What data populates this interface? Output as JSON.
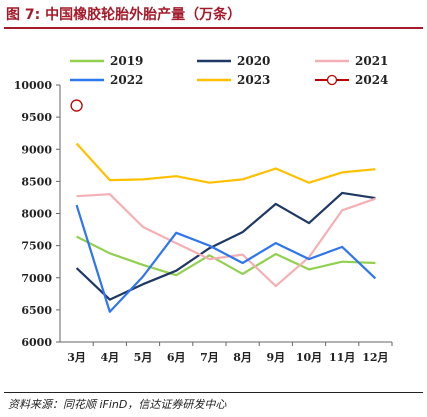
{
  "header": {
    "title": "图 7:  中国橡胶轮胎外胎产量（万条）"
  },
  "footer": {
    "source": "资料来源：同花顺 iFinD，信达证券研发中心"
  },
  "colors": {
    "accent": "#a51b2b",
    "2019": "#92d050",
    "2020": "#1f3864",
    "2021": "#f4b0b4",
    "2022": "#2e75f0",
    "2023": "#ffc000",
    "2024": "#c00000"
  },
  "chart_data": {
    "type": "line",
    "categories": [
      "3月",
      "4月",
      "5月",
      "6月",
      "7月",
      "8月",
      "9月",
      "10月",
      "11月",
      "12月"
    ],
    "ylim": [
      6000,
      10000
    ],
    "yticks": [
      6000,
      6500,
      7000,
      7500,
      8000,
      8500,
      9000,
      9500,
      10000
    ],
    "grid": false,
    "legend": "top",
    "series": [
      {
        "name": "2019",
        "color": "#92d050",
        "marker": "none",
        "values": [
          7640,
          7380,
          7200,
          7040,
          7350,
          7060,
          7370,
          7130,
          7250,
          7230
        ]
      },
      {
        "name": "2020",
        "color": "#1f3864",
        "marker": "none",
        "values": [
          7150,
          6660,
          6900,
          7110,
          7460,
          7710,
          8150,
          7850,
          8320,
          8240
        ]
      },
      {
        "name": "2021",
        "color": "#f4b0b4",
        "marker": "none",
        "values": [
          8270,
          8300,
          7790,
          7540,
          7290,
          7360,
          6870,
          7320,
          8050,
          8230
        ]
      },
      {
        "name": "2022",
        "color": "#2e75f0",
        "marker": "none",
        "values": [
          8130,
          6470,
          7020,
          7700,
          7500,
          7230,
          7540,
          7290,
          7480,
          6990
        ]
      },
      {
        "name": "2023",
        "color": "#ffc000",
        "marker": "none",
        "values": [
          9090,
          8520,
          8530,
          8580,
          8480,
          8530,
          8700,
          8480,
          8640,
          8690
        ]
      },
      {
        "name": "2024",
        "color": "#c00000",
        "marker": "circle",
        "values": [
          9680,
          null,
          null,
          null,
          null,
          null,
          null,
          null,
          null,
          null
        ]
      }
    ]
  }
}
